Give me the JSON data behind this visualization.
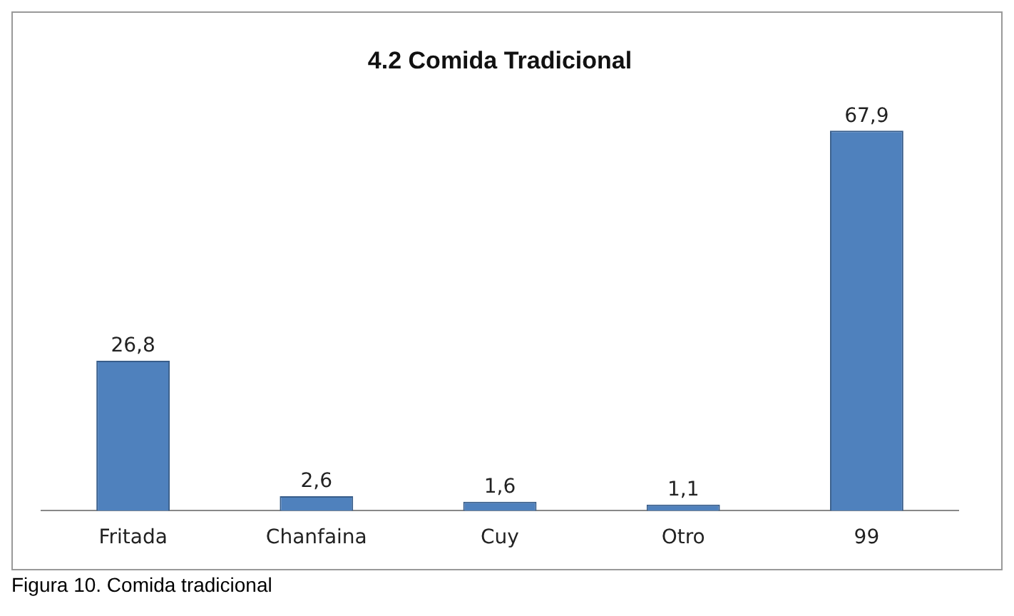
{
  "chart_data": {
    "type": "bar",
    "title": "4.2 Comida Tradicional",
    "categories": [
      "Fritada",
      "Chanfaina",
      "Cuy",
      "Otro",
      "99"
    ],
    "values": [
      26.8,
      2.6,
      1.6,
      1.1,
      67.9
    ],
    "value_labels": [
      "26,8",
      "2,6",
      "1,6",
      "1,1",
      "67,9"
    ],
    "color": "#4f81bd",
    "annotations": [
      "Figura 10. Comida tradicional"
    ]
  }
}
